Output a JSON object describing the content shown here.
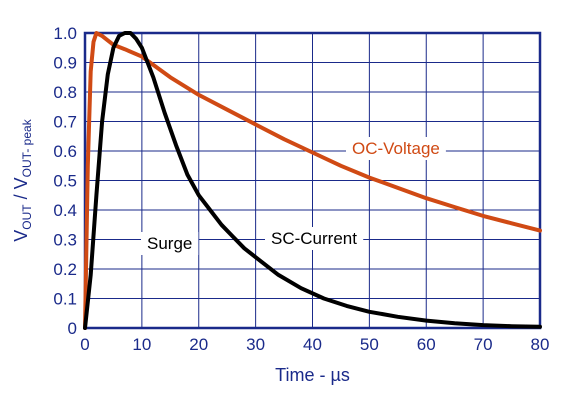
{
  "chart_data": {
    "type": "line",
    "xlabel": "Time - µs",
    "ylabel": {
      "main": "V",
      "sub1": "OUT",
      "sep": " / V",
      "sub2": "OUT- peak"
    },
    "xlim": [
      0,
      80
    ],
    "ylim": [
      0,
      1.0
    ],
    "x_ticks": [
      "0",
      "10",
      "20",
      "30",
      "40",
      "50",
      "60",
      "70",
      "80"
    ],
    "y_ticks": [
      "0",
      "0.1",
      "0.2",
      "0.3",
      "0.4",
      "0.5",
      "0.6",
      "0.7",
      "0.8",
      "0.9",
      "1.0"
    ],
    "grid": true,
    "annotations": {
      "surge": "Surge",
      "sc_current": "SC-Current",
      "oc_voltage": "OC-Voltage"
    },
    "series": [
      {
        "key": "oc_voltage",
        "color": "#d04a14",
        "x": [
          0,
          0.5,
          1,
          1.5,
          2,
          2.5,
          3,
          4,
          5,
          7,
          10,
          15,
          20,
          25,
          30,
          35,
          40,
          45,
          50,
          55,
          60,
          65,
          70,
          75,
          80
        ],
        "y": [
          0,
          0.55,
          0.87,
          0.97,
          1.0,
          0.995,
          0.99,
          0.975,
          0.96,
          0.945,
          0.92,
          0.85,
          0.79,
          0.74,
          0.69,
          0.64,
          0.595,
          0.55,
          0.51,
          0.475,
          0.44,
          0.41,
          0.38,
          0.355,
          0.33
        ]
      },
      {
        "key": "sc_current",
        "color": "#000000",
        "x": [
          0,
          1,
          2,
          3,
          4,
          5,
          6,
          7,
          8,
          9,
          10,
          12,
          14,
          16,
          18,
          20,
          22,
          24,
          26,
          28,
          30,
          34,
          38,
          42,
          46,
          50,
          55,
          60,
          65,
          70,
          75,
          80
        ],
        "y": [
          0,
          0.18,
          0.45,
          0.7,
          0.86,
          0.95,
          0.99,
          1.0,
          1.0,
          0.98,
          0.95,
          0.85,
          0.73,
          0.62,
          0.52,
          0.45,
          0.4,
          0.35,
          0.31,
          0.27,
          0.24,
          0.18,
          0.135,
          0.1,
          0.075,
          0.055,
          0.038,
          0.025,
          0.016,
          0.01,
          0.006,
          0.004
        ]
      }
    ]
  }
}
